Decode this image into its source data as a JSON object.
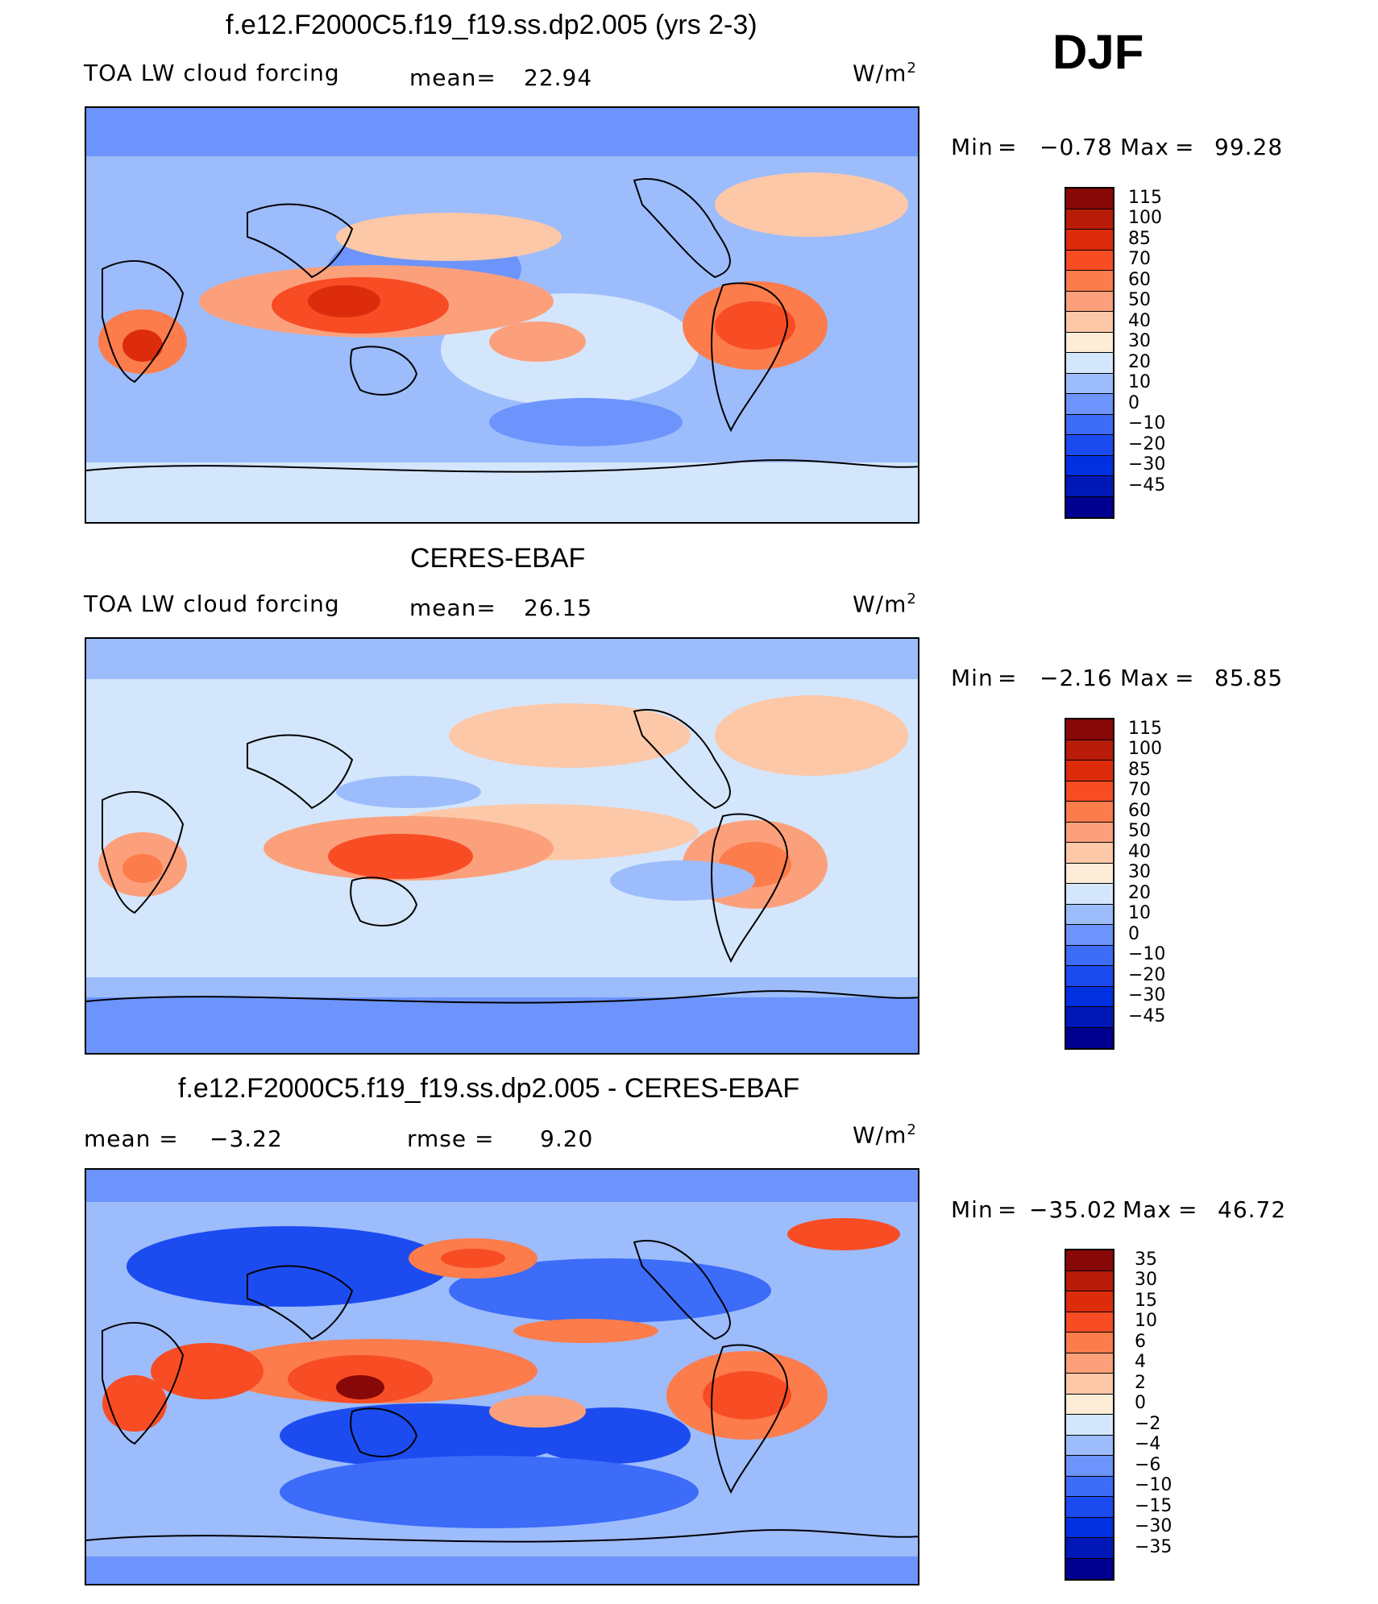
{
  "season": "DJF",
  "colors": {
    "blue_ramp": [
      "#000090",
      "#0018b8",
      "#0030e0",
      "#1c4cf0",
      "#3c6cf8",
      "#6c94fc",
      "#9cbcfc",
      "#d4e6fc"
    ],
    "red_ramp": [
      "#fcecd8",
      "#fcc8a8",
      "#fca07c",
      "#fc7c4c",
      "#f84c24",
      "#dc2c0c",
      "#b81c08",
      "#880808"
    ],
    "coast": "#000000"
  },
  "panels": [
    {
      "title": "f.e12.F2000C5.f19_f19.ss.dp2.005 (yrs 2-3)",
      "left_label": "TOA LW cloud forcing",
      "stat_label": "mean=",
      "stat_value": "22.94",
      "units": "W/m",
      "units_sup": "2",
      "min_label": "Min",
      "min_eq": "=",
      "min_value": "−0.78",
      "max_label": "Max",
      "max_eq": "=",
      "max_value": "99.28",
      "ticks": [
        "115",
        "100",
        "85",
        "70",
        "60",
        "50",
        "40",
        "30",
        "20",
        "10",
        "0",
        "−10",
        "−20",
        "−30",
        "−45"
      ]
    },
    {
      "title": "CERES-EBAF",
      "left_label": "TOA LW cloud forcing",
      "stat_label": "mean=",
      "stat_value": "26.15",
      "units": "W/m",
      "units_sup": "2",
      "min_label": "Min",
      "min_eq": "=",
      "min_value": "−2.16",
      "max_label": "Max",
      "max_eq": "=",
      "max_value": "85.85",
      "ticks": [
        "115",
        "100",
        "85",
        "70",
        "60",
        "50",
        "40",
        "30",
        "20",
        "10",
        "0",
        "−10",
        "−20",
        "−30",
        "−45"
      ]
    },
    {
      "title": "f.e12.F2000C5.f19_f19.ss.dp2.005 - CERES-EBAF",
      "left_label": "mean =",
      "left_value": "−3.22",
      "stat_label": "rmse =",
      "stat_value": "9.20",
      "units": "W/m",
      "units_sup": "2",
      "min_label": "Min",
      "min_eq": "=",
      "min_value": "−35.02",
      "max_label": "Max",
      "max_eq": "=",
      "max_value": "46.72",
      "ticks": [
        "35",
        "30",
        "15",
        "10",
        "6",
        "4",
        "2",
        "0",
        "−2",
        "−4",
        "−6",
        "−10",
        "−15",
        "−30",
        "−35"
      ]
    }
  ]
}
